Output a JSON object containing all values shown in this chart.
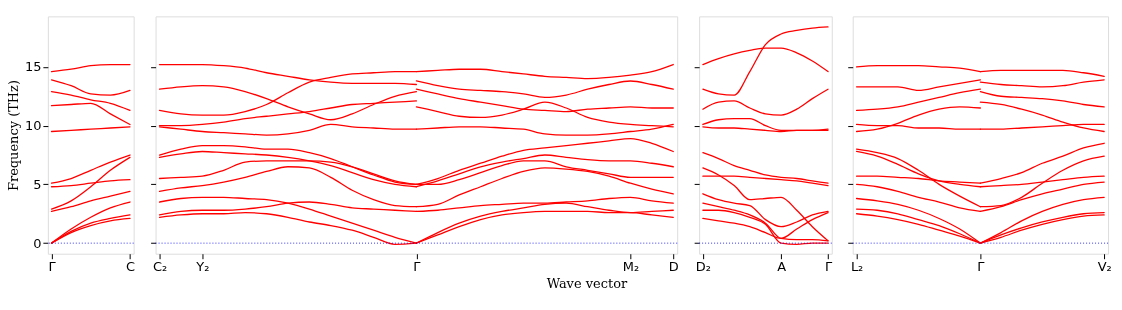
{
  "chart_data": [
    {
      "type": "line",
      "ylabel": "Frequency (THz)",
      "ylim": [
        -0.9,
        19.3
      ],
      "yticks": [
        0,
        5,
        10,
        15
      ],
      "categories": [
        "Γ",
        null,
        null,
        null,
        "C"
      ],
      "ref_lines": [
        {
          "axis": "y",
          "value": 0,
          "color": "#0000ff",
          "line_style": "dotted"
        }
      ],
      "series": [
        {
          "color": "#ff0000",
          "values": [
            0,
            0.9,
            1.5,
            1.9,
            2.1
          ]
        },
        {
          "color": "#ff0000",
          "values": [
            0,
            1.0,
            1.7,
            2.1,
            2.4
          ]
        },
        {
          "color": "#ff0000",
          "values": [
            0,
            1.2,
            2.2,
            3.0,
            3.5
          ]
        },
        {
          "color": "#ff0000",
          "values": [
            2.7,
            3.1,
            3.6,
            4.0,
            4.4
          ]
        },
        {
          "color": "#ff0000",
          "values": [
            2.9,
            3.6,
            4.8,
            6.2,
            7.3
          ]
        },
        {
          "color": "#ff0000",
          "values": [
            5.1,
            5.5,
            6.2,
            6.9,
            7.5
          ]
        },
        {
          "color": "#ff0000",
          "values": [
            4.8,
            4.9,
            5.1,
            5.3,
            5.4
          ]
        },
        {
          "color": "#ff0000",
          "values": [
            9.5,
            9.6,
            9.7,
            9.8,
            9.9
          ]
        },
        {
          "color": "#ff0000",
          "values": [
            11.7,
            11.8,
            11.9,
            11.0,
            10.1
          ]
        },
        {
          "color": "#ff0000",
          "values": [
            12.9,
            12.6,
            12.2,
            11.9,
            11.3
          ]
        },
        {
          "color": "#ff0000",
          "values": [
            13.9,
            13.4,
            12.7,
            12.6,
            13.0
          ]
        },
        {
          "color": "#ff0000",
          "values": [
            14.6,
            14.8,
            15.1,
            15.2,
            15.2
          ]
        }
      ]
    },
    {
      "type": "line",
      "xlabel": "Wave vector",
      "tick_labels": "x",
      "ylim": [
        -0.9,
        19.3
      ],
      "yticks": [
        0,
        5,
        10,
        15
      ],
      "categories": [
        "C₂",
        null,
        "Y₂",
        null,
        null,
        null,
        null,
        null,
        null,
        null,
        null,
        null,
        "Γ",
        null,
        null,
        null,
        null,
        null,
        null,
        null,
        null,
        null,
        "M₂",
        null,
        "D"
      ],
      "ref_lines": [
        {
          "axis": "y",
          "value": 0,
          "color": "#0000ff",
          "line_style": "dotted"
        }
      ],
      "series": [
        {
          "color": "#ff0000",
          "values": [
            15.2,
            15.2,
            15.2,
            15.1,
            14.9,
            14.5,
            14.2,
            13.9,
            13.7,
            13.6,
            13.6,
            13.6,
            13.5,
            null,
            null,
            null,
            null,
            null,
            null,
            null,
            null,
            null,
            null,
            null,
            null
          ]
        },
        {
          "color": "#ff0000",
          "values": [
            13.1,
            13.3,
            13.4,
            13.3,
            12.9,
            12.3,
            11.6,
            11.0,
            10.5,
            11.0,
            11.8,
            12.5,
            12.9,
            null,
            null,
            null,
            null,
            null,
            null,
            null,
            null,
            null,
            null,
            null,
            null
          ]
        },
        {
          "color": "#ff0000",
          "values": [
            11.3,
            11.0,
            10.9,
            10.9,
            11.2,
            11.8,
            12.8,
            13.7,
            14.1,
            14.4,
            14.5,
            14.6,
            14.6,
            null,
            null,
            null,
            null,
            null,
            null,
            null,
            null,
            null,
            null,
            null,
            null
          ]
        },
        {
          "color": "#ff0000",
          "values": [
            10.0,
            10.0,
            10.1,
            10.3,
            10.6,
            10.8,
            11.0,
            11.2,
            11.5,
            11.8,
            11.9,
            12.0,
            12.1,
            null,
            null,
            null,
            null,
            null,
            null,
            null,
            null,
            null,
            null,
            null,
            null
          ]
        },
        {
          "color": "#ff0000",
          "values": [
            9.9,
            9.7,
            9.5,
            9.4,
            9.3,
            9.2,
            9.3,
            9.6,
            10.1,
            9.9,
            9.8,
            9.7,
            9.7,
            null,
            null,
            null,
            null,
            null,
            null,
            null,
            null,
            null,
            null,
            null,
            null
          ]
        },
        {
          "color": "#ff0000",
          "values": [
            7.5,
            8.0,
            8.3,
            8.3,
            8.2,
            8.0,
            8.0,
            7.7,
            7.2,
            6.5,
            5.8,
            5.2,
            5.0,
            null,
            null,
            null,
            null,
            null,
            null,
            null,
            null,
            null,
            null,
            null,
            null
          ]
        },
        {
          "color": "#ff0000",
          "values": [
            7.3,
            7.6,
            7.8,
            7.7,
            7.6,
            7.5,
            7.3,
            7.0,
            6.6,
            6.0,
            5.4,
            5.0,
            4.8,
            null,
            null,
            null,
            null,
            null,
            null,
            null,
            null,
            null,
            null,
            null,
            null
          ]
        },
        {
          "color": "#ff0000",
          "values": [
            5.5,
            5.6,
            5.7,
            6.2,
            6.9,
            7.0,
            7.0,
            7.0,
            6.9,
            6.5,
            5.9,
            5.3,
            5.0,
            null,
            null,
            null,
            null,
            null,
            null,
            null,
            null,
            null,
            null,
            null,
            null
          ]
        },
        {
          "color": "#ff0000",
          "values": [
            4.4,
            4.7,
            4.9,
            5.2,
            5.6,
            6.1,
            6.5,
            6.4,
            5.6,
            4.5,
            3.7,
            3.2,
            3.1,
            null,
            null,
            null,
            null,
            null,
            null,
            null,
            null,
            null,
            null,
            null,
            null
          ]
        },
        {
          "color": "#ff0000",
          "values": [
            3.5,
            3.8,
            3.9,
            3.9,
            3.8,
            3.7,
            3.4,
            2.9,
            2.3,
            1.7,
            1.1,
            0.5,
            0,
            null,
            null,
            null,
            null,
            null,
            null,
            null,
            null,
            null,
            null,
            null,
            null
          ]
        },
        {
          "color": "#ff0000",
          "values": [
            2.4,
            2.7,
            2.8,
            2.8,
            2.9,
            3.1,
            3.4,
            3.5,
            3.3,
            3.0,
            2.9,
            2.8,
            2.7,
            null,
            null,
            null,
            null,
            null,
            null,
            null,
            null,
            null,
            null,
            null,
            null
          ]
        },
        {
          "color": "#ff0000",
          "values": [
            2.2,
            2.4,
            2.5,
            2.5,
            2.6,
            2.5,
            2.2,
            1.8,
            1.5,
            1.1,
            0.5,
            -0.1,
            0,
            null,
            null,
            null,
            null,
            null,
            null,
            null,
            null,
            null,
            null,
            null,
            null
          ]
        },
        {
          "color": "#ff0000",
          "values": [
            null,
            null,
            null,
            null,
            null,
            null,
            null,
            null,
            null,
            null,
            null,
            null,
            14.6,
            14.7,
            14.8,
            14.8,
            14.6,
            14.4,
            14.2,
            14.1,
            14.0,
            14.1,
            14.3,
            14.6,
            15.2
          ]
        },
        {
          "color": "#ff0000",
          "values": [
            null,
            null,
            null,
            null,
            null,
            null,
            null,
            null,
            null,
            null,
            null,
            null,
            13.8,
            13.4,
            13.1,
            13.0,
            12.9,
            12.7,
            12.4,
            12.6,
            13.1,
            13.5,
            13.8,
            13.5,
            13.1
          ]
        },
        {
          "color": "#ff0000",
          "values": [
            null,
            null,
            null,
            null,
            null,
            null,
            null,
            null,
            null,
            null,
            null,
            null,
            13.1,
            12.7,
            12.3,
            12.0,
            11.7,
            11.4,
            11.3,
            11.2,
            11.4,
            11.5,
            11.6,
            11.5,
            11.5
          ]
        },
        {
          "color": "#ff0000",
          "values": [
            null,
            null,
            null,
            null,
            null,
            null,
            null,
            null,
            null,
            null,
            null,
            null,
            11.6,
            11.2,
            10.8,
            10.7,
            10.9,
            11.4,
            12.0,
            11.5,
            10.7,
            10.3,
            10.1,
            10.0,
            9.9
          ]
        },
        {
          "color": "#ff0000",
          "values": [
            null,
            null,
            null,
            null,
            null,
            null,
            null,
            null,
            null,
            null,
            null,
            null,
            9.7,
            9.8,
            9.9,
            9.9,
            9.8,
            9.7,
            9.3,
            9.2,
            9.2,
            9.3,
            9.5,
            9.7,
            10.1
          ]
        },
        {
          "color": "#ff0000",
          "values": [
            null,
            null,
            null,
            null,
            null,
            null,
            null,
            null,
            null,
            null,
            null,
            null,
            5.0,
            5.5,
            6.2,
            6.8,
            7.4,
            7.9,
            8.1,
            8.3,
            8.5,
            8.7,
            8.9,
            8.5,
            7.8
          ]
        },
        {
          "color": "#ff0000",
          "values": [
            null,
            null,
            null,
            null,
            null,
            null,
            null,
            null,
            null,
            null,
            null,
            null,
            4.8,
            5.3,
            5.9,
            6.5,
            6.9,
            7.2,
            7.5,
            7.3,
            7.1,
            7.0,
            7.0,
            6.8,
            6.5
          ]
        },
        {
          "color": "#ff0000",
          "values": [
            null,
            null,
            null,
            null,
            null,
            null,
            null,
            null,
            null,
            null,
            null,
            null,
            5.0,
            5.0,
            5.4,
            6.0,
            6.6,
            7.0,
            7.0,
            6.5,
            6.2,
            5.9,
            5.6,
            5.6,
            5.6
          ]
        },
        {
          "color": "#ff0000",
          "values": [
            null,
            null,
            null,
            null,
            null,
            null,
            null,
            null,
            null,
            null,
            null,
            null,
            3.1,
            3.3,
            4.1,
            4.8,
            5.5,
            6.1,
            6.4,
            6.3,
            6.1,
            5.7,
            5.1,
            4.6,
            4.2
          ]
        },
        {
          "color": "#ff0000",
          "values": [
            null,
            null,
            null,
            null,
            null,
            null,
            null,
            null,
            null,
            null,
            null,
            null,
            2.7,
            2.8,
            3.0,
            3.2,
            3.3,
            3.4,
            3.4,
            3.5,
            3.6,
            3.8,
            3.9,
            3.6,
            3.4
          ]
        },
        {
          "color": "#ff0000",
          "values": [
            null,
            null,
            null,
            null,
            null,
            null,
            null,
            null,
            null,
            null,
            null,
            null,
            0,
            0.9,
            1.7,
            2.3,
            2.7,
            3.0,
            3.3,
            3.4,
            3.1,
            2.8,
            2.6,
            2.7,
            2.8
          ]
        },
        {
          "color": "#ff0000",
          "values": [
            null,
            null,
            null,
            null,
            null,
            null,
            null,
            null,
            null,
            null,
            null,
            null,
            0,
            0.7,
            1.4,
            2.0,
            2.4,
            2.6,
            2.7,
            2.7,
            2.7,
            2.6,
            2.6,
            2.4,
            2.2
          ]
        }
      ]
    },
    {
      "type": "line",
      "tick_labels": "x",
      "ylim": [
        -0.9,
        19.3
      ],
      "yticks": [
        0,
        5,
        10,
        15
      ],
      "categories": [
        "D₂",
        null,
        null,
        null,
        null,
        "A",
        null,
        null,
        "Γ"
      ],
      "ref_lines": [
        {
          "axis": "y",
          "value": 0,
          "color": "#0000ff",
          "line_style": "dotted"
        }
      ],
      "series": [
        {
          "color": "#ff0000",
          "values": [
            15.2,
            15.7,
            16.1,
            16.4,
            16.6,
            16.6,
            16.2,
            15.5,
            14.6
          ]
        },
        {
          "color": "#ff0000",
          "values": [
            13.1,
            12.7,
            12.6,
            14.6,
            16.9,
            17.8,
            18.1,
            18.3,
            18.4
          ]
        },
        {
          "color": "#ff0000",
          "values": [
            11.4,
            12.0,
            12.1,
            11.5,
            11.0,
            10.9,
            11.4,
            12.3,
            13.1
          ]
        },
        {
          "color": "#ff0000",
          "values": [
            10.1,
            10.5,
            10.6,
            10.6,
            10.0,
            9.6,
            9.6,
            9.6,
            9.6
          ]
        },
        {
          "color": "#ff0000",
          "values": [
            9.9,
            9.8,
            9.8,
            9.7,
            9.6,
            9.5,
            9.6,
            9.6,
            9.7
          ]
        },
        {
          "color": "#ff0000",
          "values": [
            7.7,
            7.2,
            6.6,
            6.2,
            5.8,
            5.6,
            5.5,
            5.3,
            5.1
          ]
        },
        {
          "color": "#ff0000",
          "values": [
            5.7,
            5.7,
            5.7,
            5.6,
            5.5,
            5.4,
            5.3,
            5.1,
            4.9
          ]
        },
        {
          "color": "#ff0000",
          "values": [
            6.4,
            5.8,
            4.9,
            3.7,
            3.8,
            3.9,
            2.8,
            1.4,
            0.2
          ]
        },
        {
          "color": "#ff0000",
          "values": [
            4.2,
            3.7,
            3.4,
            3.2,
            2.0,
            1.4,
            1.8,
            2.4,
            2.7
          ]
        },
        {
          "color": "#ff0000",
          "values": [
            3.4,
            3.1,
            2.8,
            2.4,
            1.7,
            0.4,
            0.3,
            0.3,
            0.2
          ]
        },
        {
          "color": "#ff0000",
          "values": [
            2.8,
            2.8,
            2.6,
            2.2,
            1.6,
            0,
            -0.1,
            0,
            0
          ]
        },
        {
          "color": "#ff0000",
          "values": [
            2.1,
            1.9,
            1.7,
            1.4,
            0.9,
            0.4,
            1.2,
            2.0,
            2.6
          ]
        }
      ]
    },
    {
      "type": "line",
      "tick_labels": "x",
      "ylim": [
        -0.9,
        19.3
      ],
      "yticks": [
        0,
        5,
        10,
        15
      ],
      "categories": [
        "L₂",
        null,
        null,
        null,
        null,
        null,
        "Γ",
        null,
        null,
        null,
        null,
        null,
        "V₂"
      ],
      "ref_lines": [
        {
          "axis": "y",
          "value": 0,
          "color": "#0000ff",
          "line_style": "dotted"
        }
      ],
      "series": [
        {
          "color": "#ff0000",
          "values": [
            15.0,
            15.1,
            15.1,
            15.1,
            15.0,
            14.9,
            14.6,
            null,
            null,
            null,
            null,
            null,
            null
          ]
        },
        {
          "color": "#ff0000",
          "values": [
            13.3,
            13.3,
            13.3,
            13.0,
            13.3,
            13.6,
            13.9,
            null,
            null,
            null,
            null,
            null,
            null
          ]
        },
        {
          "color": "#ff0000",
          "values": [
            11.3,
            11.4,
            11.6,
            12.0,
            12.4,
            12.8,
            13.1,
            null,
            null,
            null,
            null,
            null,
            null
          ]
        },
        {
          "color": "#ff0000",
          "values": [
            9.5,
            9.7,
            10.2,
            10.9,
            11.4,
            11.6,
            11.5,
            null,
            null,
            null,
            null,
            null,
            null
          ]
        },
        {
          "color": "#ff0000",
          "values": [
            10.1,
            10.0,
            10.0,
            9.8,
            9.8,
            9.7,
            9.7,
            null,
            null,
            null,
            null,
            null,
            null
          ]
        },
        {
          "color": "#ff0000",
          "values": [
            8.0,
            7.7,
            7.2,
            6.2,
            5.0,
            4.0,
            3.1,
            null,
            null,
            null,
            null,
            null,
            null
          ]
        },
        {
          "color": "#ff0000",
          "values": [
            7.8,
            7.4,
            6.7,
            5.9,
            5.3,
            5.0,
            4.8,
            null,
            null,
            null,
            null,
            null,
            null
          ]
        },
        {
          "color": "#ff0000",
          "values": [
            5.7,
            5.7,
            5.6,
            5.5,
            5.3,
            5.2,
            5.1,
            null,
            null,
            null,
            null,
            null,
            null
          ]
        },
        {
          "color": "#ff0000",
          "values": [
            5.0,
            4.8,
            4.4,
            3.9,
            3.5,
            3.0,
            2.7,
            null,
            null,
            null,
            null,
            null,
            null
          ]
        },
        {
          "color": "#ff0000",
          "values": [
            3.8,
            3.6,
            3.3,
            2.8,
            2.1,
            1.2,
            0,
            null,
            null,
            null,
            null,
            null,
            null
          ]
        },
        {
          "color": "#ff0000",
          "values": [
            2.9,
            2.8,
            2.5,
            2.0,
            1.5,
            0.8,
            0,
            null,
            null,
            null,
            null,
            null,
            null
          ]
        },
        {
          "color": "#ff0000",
          "values": [
            2.5,
            2.3,
            2.0,
            1.6,
            1.1,
            0.6,
            0,
            null,
            null,
            null,
            null,
            null,
            null
          ]
        },
        {
          "color": "#ff0000",
          "values": [
            null,
            null,
            null,
            null,
            null,
            null,
            14.6,
            14.7,
            14.7,
            14.7,
            14.7,
            14.5,
            14.2
          ]
        },
        {
          "color": "#ff0000",
          "values": [
            null,
            null,
            null,
            null,
            null,
            null,
            13.7,
            13.5,
            13.4,
            13.3,
            13.4,
            13.7,
            13.9
          ]
        },
        {
          "color": "#ff0000",
          "values": [
            null,
            null,
            null,
            null,
            null,
            null,
            12.9,
            12.5,
            12.4,
            12.3,
            12.1,
            11.8,
            11.6
          ]
        },
        {
          "color": "#ff0000",
          "values": [
            null,
            null,
            null,
            null,
            null,
            null,
            12.0,
            11.8,
            11.4,
            10.9,
            10.3,
            9.8,
            9.5
          ]
        },
        {
          "color": "#ff0000",
          "values": [
            null,
            null,
            null,
            null,
            null,
            null,
            9.7,
            9.7,
            9.8,
            9.9,
            10.0,
            10.1,
            10.1
          ]
        },
        {
          "color": "#ff0000",
          "values": [
            null,
            null,
            null,
            null,
            null,
            null,
            5.1,
            5.5,
            6.0,
            6.8,
            7.4,
            8.1,
            8.5
          ]
        },
        {
          "color": "#ff0000",
          "values": [
            null,
            null,
            null,
            null,
            null,
            null,
            4.8,
            4.9,
            5.0,
            5.2,
            5.4,
            5.6,
            5.7
          ]
        },
        {
          "color": "#ff0000",
          "values": [
            null,
            null,
            null,
            null,
            null,
            null,
            3.1,
            3.2,
            3.9,
            5.1,
            6.2,
            7.0,
            7.4
          ]
        },
        {
          "color": "#ff0000",
          "values": [
            null,
            null,
            null,
            null,
            null,
            null,
            2.7,
            3.1,
            3.7,
            4.2,
            4.6,
            5.0,
            5.2
          ]
        },
        {
          "color": "#ff0000",
          "values": [
            null,
            null,
            null,
            null,
            null,
            null,
            0,
            0.9,
            1.9,
            2.7,
            3.3,
            3.7,
            3.9
          ]
        },
        {
          "color": "#ff0000",
          "values": [
            null,
            null,
            null,
            null,
            null,
            null,
            0,
            0.7,
            1.3,
            1.8,
            2.2,
            2.5,
            2.6
          ]
        },
        {
          "color": "#ff0000",
          "values": [
            null,
            null,
            null,
            null,
            null,
            null,
            0,
            0.5,
            1.1,
            1.6,
            2.0,
            2.3,
            2.4
          ]
        }
      ]
    }
  ]
}
